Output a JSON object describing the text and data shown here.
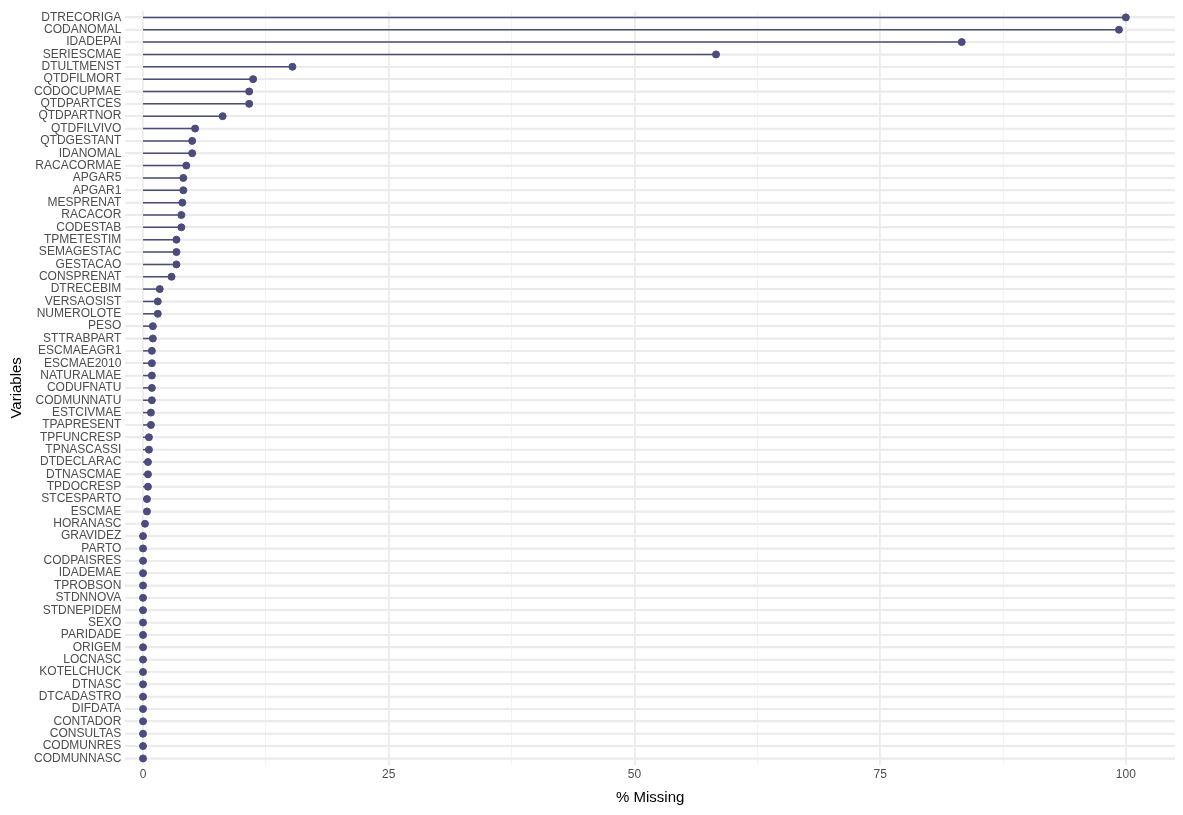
{
  "chart_data": {
    "type": "lollipop",
    "orientation": "horizontal",
    "xlabel": "% Missing",
    "ylabel": "Variables",
    "color": "#4b4b7c",
    "marker": "circle",
    "grid": true,
    "categories": [
      "DTRECORIGA",
      "CODANOMAL",
      "IDADEPAI",
      "SERIESCMAE",
      "DTULTMENST",
      "QTDFILMORT",
      "CODOCUPMAE",
      "QTDPARTCES",
      "QTDPARTNOR",
      "QTDFILVIVO",
      "QTDGESTANT",
      "IDANOMAL",
      "RACACORMAE",
      "APGAR5",
      "APGAR1",
      "MESPRENAT",
      "RACACOR",
      "CODESTAB",
      "TPMETESTIM",
      "SEMAGESTAC",
      "GESTACAO",
      "CONSPRENAT",
      "DTRECEBIM",
      "VERSAOSIST",
      "NUMEROLOTE",
      "PESO",
      "STTRABPART",
      "ESCMAEAGR1",
      "ESCMAE2010",
      "NATURALMAE",
      "CODUFNATU",
      "CODMUNNATU",
      "ESTCIVMAE",
      "TPAPRESENT",
      "TPFUNCRESP",
      "TPNASCASSI",
      "DTDECLARAC",
      "DTNASCMAE",
      "TPDOCRESP",
      "STCESPARTO",
      "ESCMAE",
      "HORANASC",
      "GRAVIDEZ",
      "PARTO",
      "CODPAISRES",
      "IDADEMAE",
      "TPROBSON",
      "STDNNOVA",
      "STDNEPIDEM",
      "SEXO",
      "PARIDADE",
      "ORIGEM",
      "LOCNASC",
      "KOTELCHUCK",
      "DTNASC",
      "DTCADASTRO",
      "DIFDATA",
      "CONTADOR",
      "CONSULTAS",
      "CODMUNRES",
      "CODMUNNASC"
    ],
    "values": [
      100,
      99.3,
      83.3,
      58.3,
      15.2,
      11.2,
      10.8,
      10.8,
      8.1,
      5.3,
      5.0,
      5.0,
      4.4,
      4.1,
      4.1,
      4.0,
      3.9,
      3.9,
      3.4,
      3.4,
      3.4,
      2.9,
      1.7,
      1.5,
      1.5,
      1.0,
      1.0,
      0.9,
      0.9,
      0.9,
      0.9,
      0.9,
      0.8,
      0.8,
      0.6,
      0.6,
      0.5,
      0.5,
      0.5,
      0.4,
      0.4,
      0.2,
      0,
      0,
      0,
      0,
      0,
      0,
      0,
      0,
      0,
      0,
      0,
      0,
      0,
      0,
      0,
      0,
      0,
      0,
      0
    ],
    "xlim": [
      -1.8,
      105
    ],
    "xticks": [
      0,
      {
        "value": 12.5,
        "label": null
      },
      25,
      {
        "value": 37.5,
        "label": null
      },
      50,
      {
        "value": 62.5,
        "label": null
      },
      75,
      {
        "value": 87.5,
        "label": null
      },
      100
    ]
  }
}
